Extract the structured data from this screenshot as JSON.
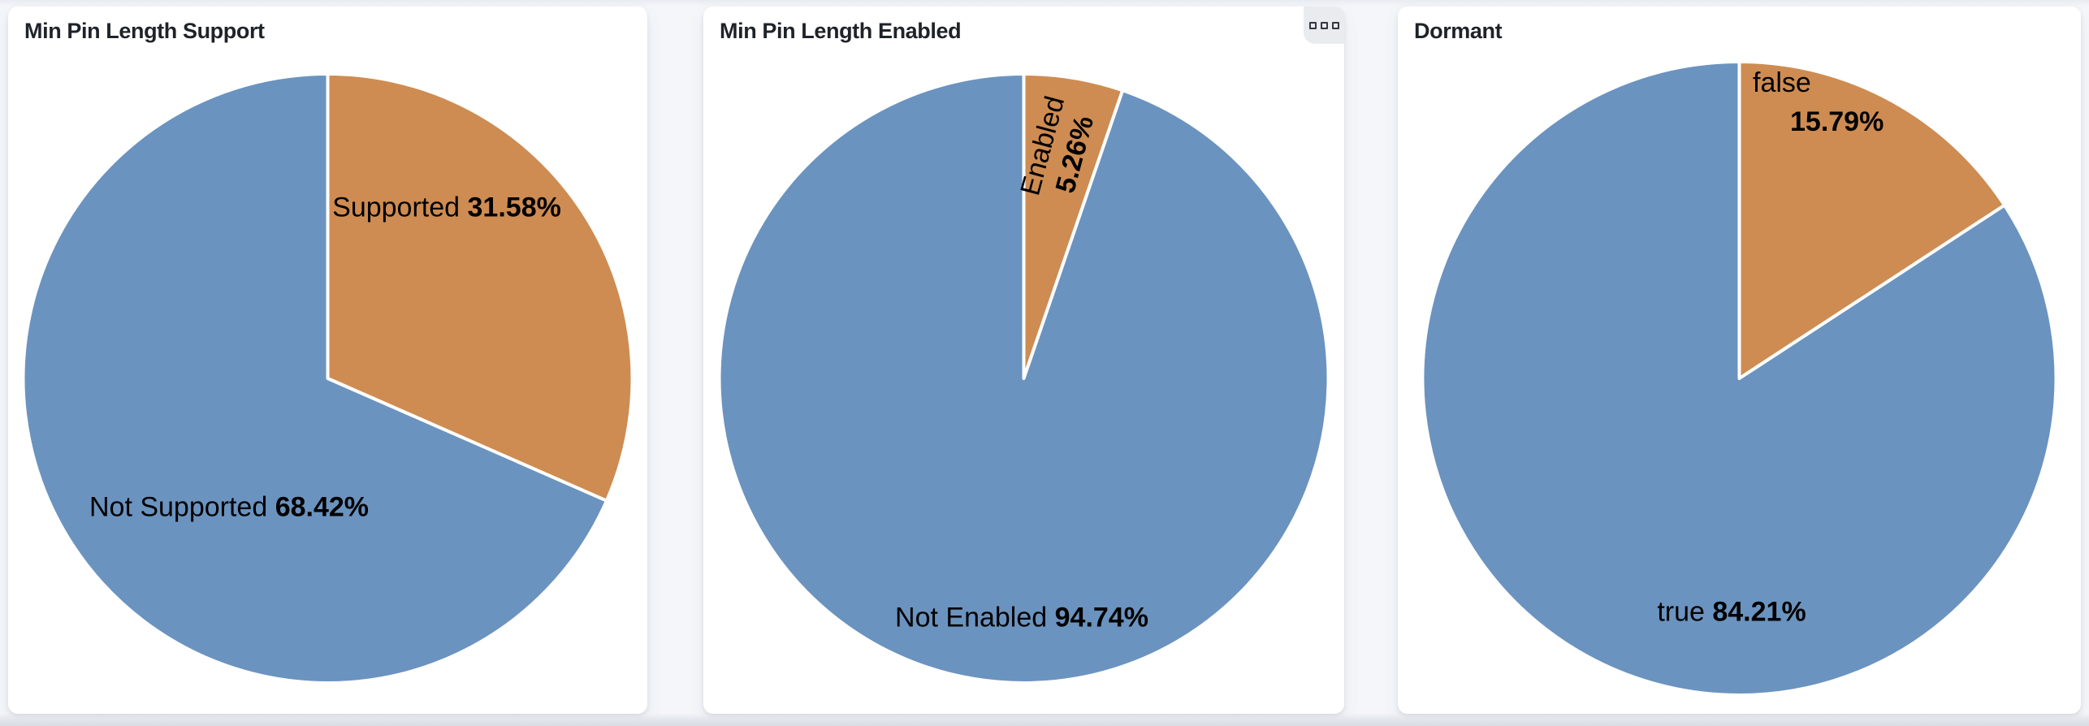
{
  "panels": [
    {
      "title": "Min Pin Length Support",
      "options_menu_visible": false
    },
    {
      "title": "Min Pin Length Enabled",
      "options_menu_visible": true,
      "options_icon": "boxes-horizontal"
    },
    {
      "title": "Dormant",
      "options_menu_visible": false
    }
  ],
  "chart_data": [
    {
      "type": "pie",
      "title": "Min Pin Length Support",
      "start": "12-oclock",
      "direction": "clockwise",
      "legend": "none",
      "slices": [
        {
          "label": "Supported",
          "value_pct": 31.58,
          "pct_label": "31.58%",
          "color": "#ce8c52"
        },
        {
          "label": "Not Supported",
          "value_pct": 68.42,
          "pct_label": "68.42%",
          "color": "#6b93bf"
        }
      ]
    },
    {
      "type": "pie",
      "title": "Min Pin Length Enabled",
      "start": "12-oclock",
      "direction": "clockwise",
      "legend": "none",
      "slices": [
        {
          "label": "Enabled",
          "value_pct": 5.26,
          "pct_label": "5.26%",
          "color": "#ce8c52",
          "label_rotated": true
        },
        {
          "label": "Not Enabled",
          "value_pct": 94.74,
          "pct_label": "94.74%",
          "color": "#6b93bf"
        }
      ]
    },
    {
      "type": "pie",
      "title": "Dormant",
      "start": "12-oclock",
      "direction": "clockwise",
      "legend": "none",
      "slices": [
        {
          "label": "false",
          "value_pct": 15.79,
          "pct_label": "15.79%",
          "color": "#ce8c52",
          "label_two_line": true
        },
        {
          "label": "true",
          "value_pct": 84.21,
          "pct_label": "84.21%",
          "color": "#6b93bf"
        }
      ]
    }
  ],
  "colors": {
    "slice_orange": "#ce8c52",
    "slice_blue": "#6b93bf",
    "slice_divider": "#ffffff",
    "panel_bg": "#ffffff",
    "page_bg": "#f4f6fa",
    "title_text": "#1f2329",
    "label_text": "#000000",
    "options_icon": "#343741",
    "options_btn_bg": "#e9ebef"
  }
}
